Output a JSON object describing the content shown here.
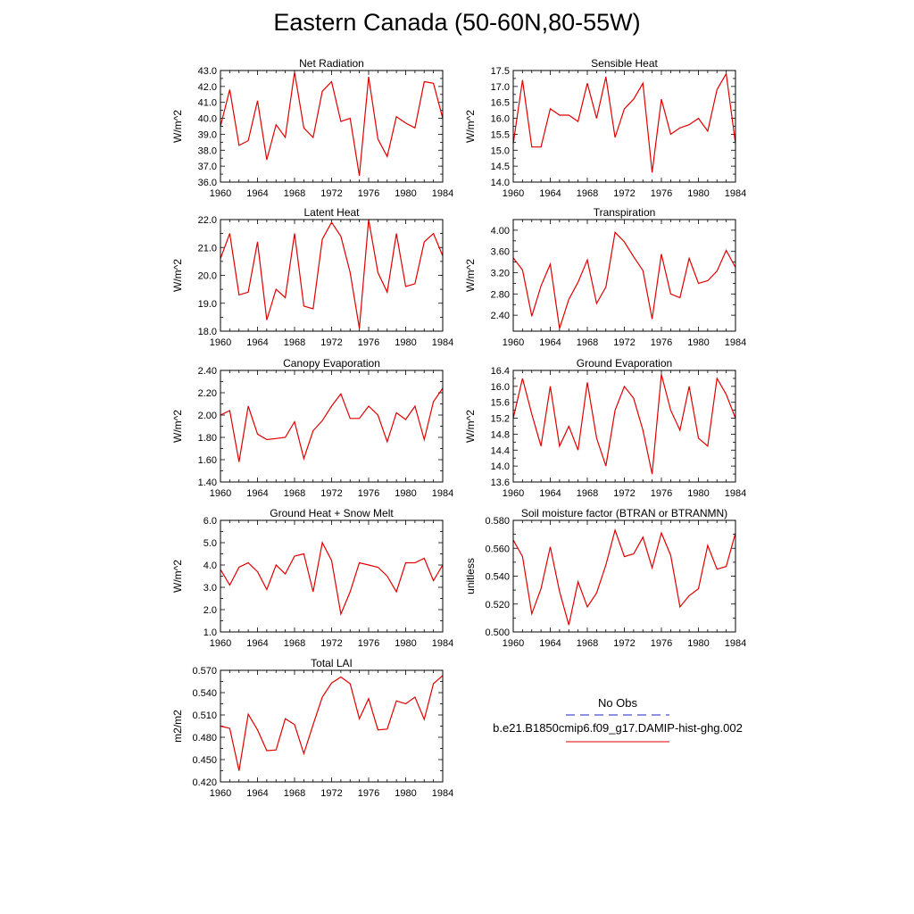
{
  "title": "Eastern Canada (50-60N,80-55W)",
  "legend": {
    "obs_label": "No Obs",
    "model_label": "b.e21.B1850cmip6.f09_g17.DAMIP-hist-ghg.002",
    "obs_color": "#1f1fd0",
    "model_color": "#e00000"
  },
  "chart_data": [
    {
      "type": "line",
      "title": "Net Radiation",
      "ylabel": "W/m^2",
      "ylim": [
        36.0,
        43.0
      ],
      "yticks": [
        "36.0",
        "37.0",
        "38.0",
        "39.0",
        "40.0",
        "41.0",
        "42.0",
        "43.0"
      ],
      "xlim": [
        1960,
        1984
      ],
      "xticks": [
        "1960",
        "1964",
        "1968",
        "1972",
        "1976",
        "1980",
        "1984"
      ],
      "x": [
        1960,
        1961,
        1962,
        1963,
        1964,
        1965,
        1966,
        1967,
        1968,
        1969,
        1970,
        1971,
        1972,
        1973,
        1974,
        1975,
        1976,
        1977,
        1978,
        1979,
        1980,
        1981,
        1982,
        1983,
        1984
      ],
      "series": [
        {
          "values": [
            39.5,
            41.8,
            38.3,
            38.6,
            41.1,
            37.4,
            39.6,
            38.8,
            42.9,
            39.4,
            38.8,
            41.7,
            42.3,
            39.8,
            40.0,
            36.4,
            42.6,
            38.7,
            37.6,
            40.1,
            39.7,
            39.4,
            42.3,
            42.2,
            40.0
          ]
        }
      ]
    },
    {
      "type": "line",
      "title": "Sensible Heat",
      "ylabel": "W/m^2",
      "ylim": [
        14.0,
        17.5
      ],
      "yticks": [
        "14.0",
        "14.5",
        "15.0",
        "15.5",
        "16.0",
        "16.5",
        "17.0",
        "17.5"
      ],
      "xlim": [
        1960,
        1984
      ],
      "xticks": [
        "1960",
        "1964",
        "1968",
        "1972",
        "1976",
        "1980",
        "1984"
      ],
      "x": [
        1960,
        1961,
        1962,
        1963,
        1964,
        1965,
        1966,
        1967,
        1968,
        1969,
        1970,
        1971,
        1972,
        1973,
        1974,
        1975,
        1976,
        1977,
        1978,
        1979,
        1980,
        1981,
        1982,
        1983,
        1984
      ],
      "series": [
        {
          "values": [
            15.2,
            17.2,
            15.1,
            15.1,
            16.3,
            16.1,
            16.1,
            15.9,
            17.1,
            16.0,
            17.3,
            15.4,
            16.3,
            16.6,
            17.1,
            14.3,
            16.6,
            15.5,
            15.7,
            15.8,
            16.0,
            15.6,
            16.9,
            17.4,
            15.2
          ]
        }
      ]
    },
    {
      "type": "line",
      "title": "Latent Heat",
      "ylabel": "W/m^2",
      "ylim": [
        18.0,
        22.0
      ],
      "yticks": [
        "18.0",
        "19.0",
        "20.0",
        "21.0",
        "22.0"
      ],
      "xlim": [
        1960,
        1984
      ],
      "xticks": [
        "1960",
        "1964",
        "1968",
        "1972",
        "1976",
        "1980",
        "1984"
      ],
      "x": [
        1960,
        1961,
        1962,
        1963,
        1964,
        1965,
        1966,
        1967,
        1968,
        1969,
        1970,
        1971,
        1972,
        1973,
        1974,
        1975,
        1976,
        1977,
        1978,
        1979,
        1980,
        1981,
        1982,
        1983,
        1984
      ],
      "series": [
        {
          "values": [
            20.6,
            21.5,
            19.3,
            19.4,
            21.2,
            18.4,
            19.5,
            19.2,
            21.5,
            18.9,
            18.8,
            21.3,
            21.9,
            21.4,
            20.1,
            18.1,
            22.0,
            20.1,
            19.4,
            21.5,
            19.6,
            19.7,
            21.2,
            21.5,
            20.7
          ]
        }
      ]
    },
    {
      "type": "line",
      "title": "Transpiration",
      "ylabel": "W/m^2",
      "ylim": [
        2.1,
        4.2
      ],
      "yticks": [
        "2.40",
        "2.80",
        "3.20",
        "3.60",
        "4.00"
      ],
      "xlim": [
        1960,
        1984
      ],
      "xticks": [
        "1960",
        "1964",
        "1968",
        "1972",
        "1976",
        "1980",
        "1984"
      ],
      "x": [
        1960,
        1961,
        1962,
        1963,
        1964,
        1965,
        1966,
        1967,
        1968,
        1969,
        1970,
        1971,
        1972,
        1973,
        1974,
        1975,
        1976,
        1977,
        1978,
        1979,
        1980,
        1981,
        1982,
        1983,
        1984
      ],
      "series": [
        {
          "values": [
            3.48,
            3.25,
            2.38,
            2.95,
            3.36,
            2.15,
            2.7,
            3.02,
            3.44,
            2.62,
            2.93,
            3.96,
            3.78,
            3.5,
            3.24,
            2.33,
            3.55,
            2.8,
            2.73,
            3.47,
            3.0,
            3.05,
            3.23,
            3.62,
            3.3
          ]
        }
      ]
    },
    {
      "type": "line",
      "title": "Canopy Evaporation",
      "ylabel": "W/m^2",
      "ylim": [
        1.4,
        2.4
      ],
      "yticks": [
        "1.40",
        "1.60",
        "1.80",
        "2.00",
        "2.20",
        "2.40"
      ],
      "xlim": [
        1960,
        1984
      ],
      "xticks": [
        "1960",
        "1964",
        "1968",
        "1972",
        "1976",
        "1980",
        "1984"
      ],
      "x": [
        1960,
        1961,
        1962,
        1963,
        1964,
        1965,
        1966,
        1967,
        1968,
        1969,
        1970,
        1971,
        1972,
        1973,
        1974,
        1975,
        1976,
        1977,
        1978,
        1979,
        1980,
        1981,
        1982,
        1983,
        1984
      ],
      "series": [
        {
          "values": [
            2.0,
            2.04,
            1.58,
            2.08,
            1.83,
            1.78,
            1.79,
            1.8,
            1.94,
            1.61,
            1.86,
            1.95,
            2.08,
            2.19,
            1.97,
            1.97,
            2.08,
            2.0,
            1.76,
            2.02,
            1.96,
            2.08,
            1.78,
            2.12,
            2.24
          ]
        }
      ]
    },
    {
      "type": "line",
      "title": "Ground Evaporation",
      "ylabel": "W/m^2",
      "ylim": [
        13.6,
        16.4
      ],
      "yticks": [
        "13.6",
        "14.0",
        "14.4",
        "14.8",
        "15.2",
        "15.6",
        "16.0",
        "16.4"
      ],
      "xlim": [
        1960,
        1984
      ],
      "xticks": [
        "1960",
        "1964",
        "1968",
        "1972",
        "1976",
        "1980",
        "1984"
      ],
      "x": [
        1960,
        1961,
        1962,
        1963,
        1964,
        1965,
        1966,
        1967,
        1968,
        1969,
        1970,
        1971,
        1972,
        1973,
        1974,
        1975,
        1976,
        1977,
        1978,
        1979,
        1980,
        1981,
        1982,
        1983,
        1984
      ],
      "series": [
        {
          "values": [
            15.2,
            16.2,
            15.3,
            14.5,
            16.0,
            14.5,
            15.0,
            14.4,
            16.1,
            14.7,
            14.0,
            15.4,
            16.0,
            15.7,
            14.9,
            13.8,
            16.3,
            15.4,
            14.9,
            16.0,
            14.7,
            14.5,
            16.2,
            15.8,
            15.2
          ]
        }
      ]
    },
    {
      "type": "line",
      "title": "Ground Heat + Snow Melt",
      "ylabel": "W/m^2",
      "ylim": [
        1.0,
        6.0
      ],
      "yticks": [
        "1.0",
        "2.0",
        "3.0",
        "4.0",
        "5.0",
        "6.0"
      ],
      "xlim": [
        1960,
        1984
      ],
      "xticks": [
        "1960",
        "1964",
        "1968",
        "1972",
        "1976",
        "1980",
        "1984"
      ],
      "x": [
        1960,
        1961,
        1962,
        1963,
        1964,
        1965,
        1966,
        1967,
        1968,
        1969,
        1970,
        1971,
        1972,
        1973,
        1974,
        1975,
        1976,
        1977,
        1978,
        1979,
        1980,
        1981,
        1982,
        1983,
        1984
      ],
      "series": [
        {
          "values": [
            3.8,
            3.1,
            3.9,
            4.1,
            3.7,
            2.9,
            4.0,
            3.6,
            4.4,
            4.5,
            2.8,
            5.0,
            4.2,
            1.8,
            2.8,
            4.1,
            4.0,
            3.9,
            3.5,
            2.8,
            4.1,
            4.1,
            4.3,
            3.3,
            4.0
          ]
        }
      ]
    },
    {
      "type": "line",
      "title": "Soil moisture factor (BTRAN or BTRANMN)",
      "ylabel": "unitless",
      "ylim": [
        0.5,
        0.58
      ],
      "yticks": [
        "0.500",
        "0.520",
        "0.540",
        "0.560",
        "0.580"
      ],
      "xlim": [
        1960,
        1984
      ],
      "xticks": [
        "1960",
        "1964",
        "1968",
        "1972",
        "1976",
        "1980",
        "1984"
      ],
      "x": [
        1960,
        1961,
        1962,
        1963,
        1964,
        1965,
        1966,
        1967,
        1968,
        1969,
        1970,
        1971,
        1972,
        1973,
        1974,
        1975,
        1976,
        1977,
        1978,
        1979,
        1980,
        1981,
        1982,
        1983,
        1984
      ],
      "series": [
        {
          "values": [
            0.566,
            0.554,
            0.513,
            0.531,
            0.561,
            0.529,
            0.505,
            0.536,
            0.518,
            0.528,
            0.548,
            0.573,
            0.554,
            0.556,
            0.568,
            0.546,
            0.571,
            0.555,
            0.518,
            0.526,
            0.531,
            0.562,
            0.545,
            0.547,
            0.571
          ]
        }
      ]
    },
    {
      "type": "line",
      "title": "Total LAI",
      "ylabel": "m2/m2",
      "ylim": [
        0.42,
        0.57
      ],
      "yticks": [
        "0.420",
        "0.450",
        "0.480",
        "0.510",
        "0.540",
        "0.570"
      ],
      "xlim": [
        1960,
        1984
      ],
      "xticks": [
        "1960",
        "1964",
        "1968",
        "1972",
        "1976",
        "1980",
        "1984"
      ],
      "x": [
        1960,
        1961,
        1962,
        1963,
        1964,
        1965,
        1966,
        1967,
        1968,
        1969,
        1970,
        1971,
        1972,
        1973,
        1974,
        1975,
        1976,
        1977,
        1978,
        1979,
        1980,
        1981,
        1982,
        1983,
        1984
      ],
      "series": [
        {
          "values": [
            0.495,
            0.492,
            0.435,
            0.511,
            0.49,
            0.462,
            0.463,
            0.505,
            0.497,
            0.458,
            0.497,
            0.534,
            0.553,
            0.561,
            0.552,
            0.505,
            0.532,
            0.49,
            0.491,
            0.529,
            0.525,
            0.534,
            0.504,
            0.552,
            0.563
          ]
        }
      ]
    }
  ]
}
